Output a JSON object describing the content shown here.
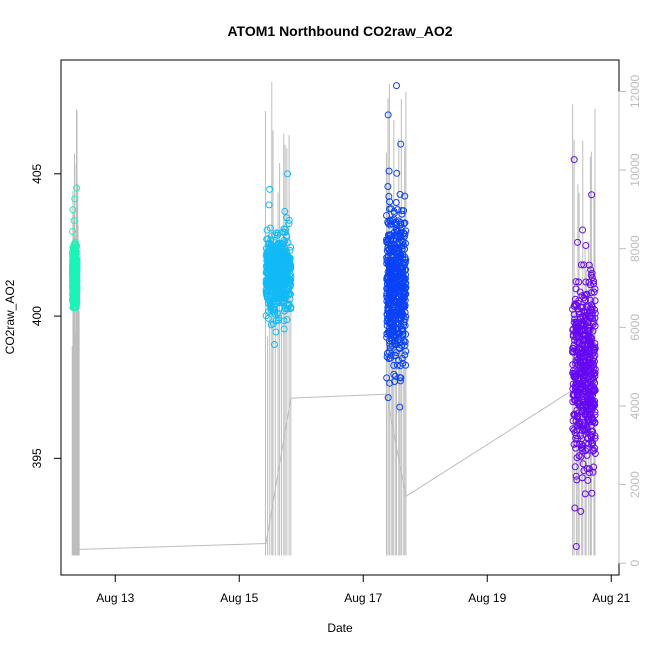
{
  "chart_data": {
    "type": "scatter",
    "title": "ATOM1 Northbound CO2raw_AO2",
    "xlabel": "Date",
    "ylabel": "CO2raw_AO2",
    "xlim": [
      "2022-08-12T03:00",
      "2022-08-21T03:00"
    ],
    "ylim": [
      390.9,
      409.0
    ],
    "y2lim": [
      -300,
      12800
    ],
    "x_ticks": [
      {
        "date": "2022-08-13",
        "label": "Aug 13"
      },
      {
        "date": "2022-08-15",
        "label": "Aug 15"
      },
      {
        "date": "2022-08-17",
        "label": "Aug 17"
      },
      {
        "date": "2022-08-19",
        "label": "Aug 19"
      },
      {
        "date": "2022-08-21",
        "label": "Aug 21"
      }
    ],
    "y_ticks": [
      395,
      400,
      405
    ],
    "y2_ticks": [
      0,
      2000,
      4000,
      6000,
      8000,
      10000,
      12000
    ],
    "grid": false,
    "colors": {
      "secondary_line": "#bdbdbd",
      "frame": "#000000",
      "right_axis": "#bdbdbd"
    },
    "series": [
      {
        "color": "#1cf4b8",
        "x_start": "2022-08-12T07:25",
        "x_end": "2022-08-12T09:10",
        "y_center": 401.3,
        "y_min": 400.3,
        "y_max": 404.5
      },
      {
        "color": "#12baf6",
        "x_start": "2022-08-15T10:20",
        "x_end": "2022-08-15T20:00",
        "y_center": 401.5,
        "y_min": 399.0,
        "y_max": 405.0
      },
      {
        "color": "#0a42f7",
        "x_start": "2022-08-17T09:00",
        "x_end": "2022-08-17T16:30",
        "y_center": 401.0,
        "y_min": 396.8,
        "y_max": 408.1
      },
      {
        "color": "#6608f5",
        "x_start": "2022-08-20T09:00",
        "x_end": "2022-08-20T17:50",
        "y_center": 398.0,
        "y_min": 391.9,
        "y_max": 405.5
      }
    ],
    "secondary_series": {
      "axis": "right",
      "color": "#bdbdbd",
      "trend": [
        [
          "2022-08-12T09:10",
          350
        ],
        [
          "2022-08-15T10:20",
          500
        ],
        [
          "2022-08-15T20:00",
          4200
        ],
        [
          "2022-08-17T09:00",
          4300
        ],
        [
          "2022-08-17T16:30",
          1700
        ],
        [
          "2022-08-20T09:00",
          4400
        ]
      ],
      "spikes": [
        {
          "x_start": "2022-08-12T07:25",
          "x_end": "2022-08-12T10:00",
          "low": 200,
          "high": 11800
        },
        {
          "x_start": "2022-08-15T10:20",
          "x_end": "2022-08-15T20:00",
          "low": 200,
          "high": 12500
        },
        {
          "x_start": "2022-08-17T09:00",
          "x_end": "2022-08-17T16:30",
          "low": 200,
          "high": 12700
        },
        {
          "x_start": "2022-08-20T09:00",
          "x_end": "2022-08-20T17:50",
          "low": 200,
          "high": 12200
        }
      ]
    }
  }
}
